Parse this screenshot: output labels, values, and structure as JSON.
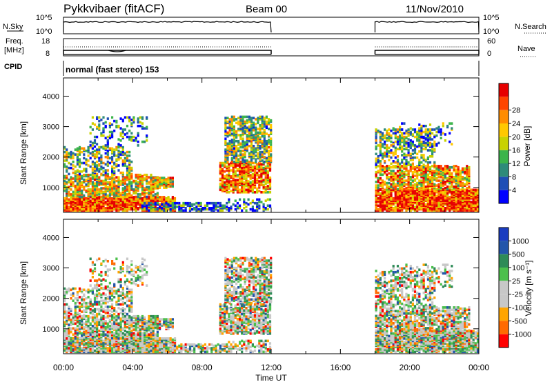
{
  "header": {
    "radar": "Pykkvibaer (fitACF)",
    "beam": "Beam 00",
    "date": "11/Nov/2010"
  },
  "strip_nsky": {
    "left_label": "N.Sky",
    "left_ticks": [
      "10^5",
      "10^0"
    ],
    "right_label": "N.Search",
    "right_ticks": [
      "10^5",
      "10^0"
    ]
  },
  "strip_freq": {
    "left_label_1": "Freq.",
    "left_label_2": "[MHz]",
    "left_ticks": [
      "18",
      "8"
    ],
    "right_label": "Nave",
    "right_ticks": [
      "60",
      "0"
    ]
  },
  "cpid": {
    "label": "CPID",
    "value": "normal (fast stereo) 153"
  },
  "x_axis": {
    "label": "Time UT",
    "ticks": [
      "00:00",
      "04:00",
      "08:00",
      "12:00",
      "16:00",
      "20:00",
      "00:00"
    ]
  },
  "colors": {
    "power": [
      "#0000ff",
      "#1f4fb5",
      "#2e8b7a",
      "#3cb44b",
      "#c8d200",
      "#ffc800",
      "#ff8c00",
      "#ff4500",
      "#e60000"
    ],
    "velocity": [
      "#ff0000",
      "#ff6a00",
      "#ffa500",
      "#c8c8c8",
      "#c8c8c8",
      "#4cc04c",
      "#2e8b57",
      "#2255aa",
      "#1a3cc0"
    ]
  },
  "chart_data": [
    {
      "type": "line",
      "title": "N.Sky / N.Search",
      "x": [
        "00:00",
        "12:00",
        "18:00",
        "24:00"
      ],
      "segments_hours": [
        [
          0,
          12
        ],
        [
          18,
          24
        ]
      ],
      "ylim": [
        0,
        5
      ]
    },
    {
      "type": "line",
      "title": "Freq. / Nave",
      "x": [
        "00:00",
        "12:00",
        "18:00",
        "24:00"
      ],
      "segments_hours": [
        [
          0,
          12
        ],
        [
          18,
          24
        ]
      ],
      "ylim": [
        8,
        18
      ]
    },
    {
      "type": "heatmap",
      "ylabel": "Slant Range [km]",
      "xlabel": "Time UT",
      "xlim": [
        0,
        24
      ],
      "ylim": [
        180,
        4600
      ],
      "yticks": [
        "1000",
        "2000",
        "3000",
        "4000"
      ],
      "colorbar_label": "Power [dB]",
      "colorbar_ticks": [
        "4",
        "8",
        "12",
        "16",
        "20",
        "24",
        "28"
      ]
    },
    {
      "type": "heatmap",
      "ylabel": "Slant Range [km]",
      "xlabel": "Time UT",
      "xlim": [
        0,
        24
      ],
      "ylim": [
        180,
        4600
      ],
      "yticks": [
        "1000",
        "2000",
        "3000",
        "4000"
      ],
      "colorbar_label": "Velocity [m s⁻¹]",
      "colorbar_ticks": [
        "1000",
        "500",
        "100",
        "25",
        "-25",
        "-100",
        "-500",
        "-1000"
      ]
    }
  ]
}
